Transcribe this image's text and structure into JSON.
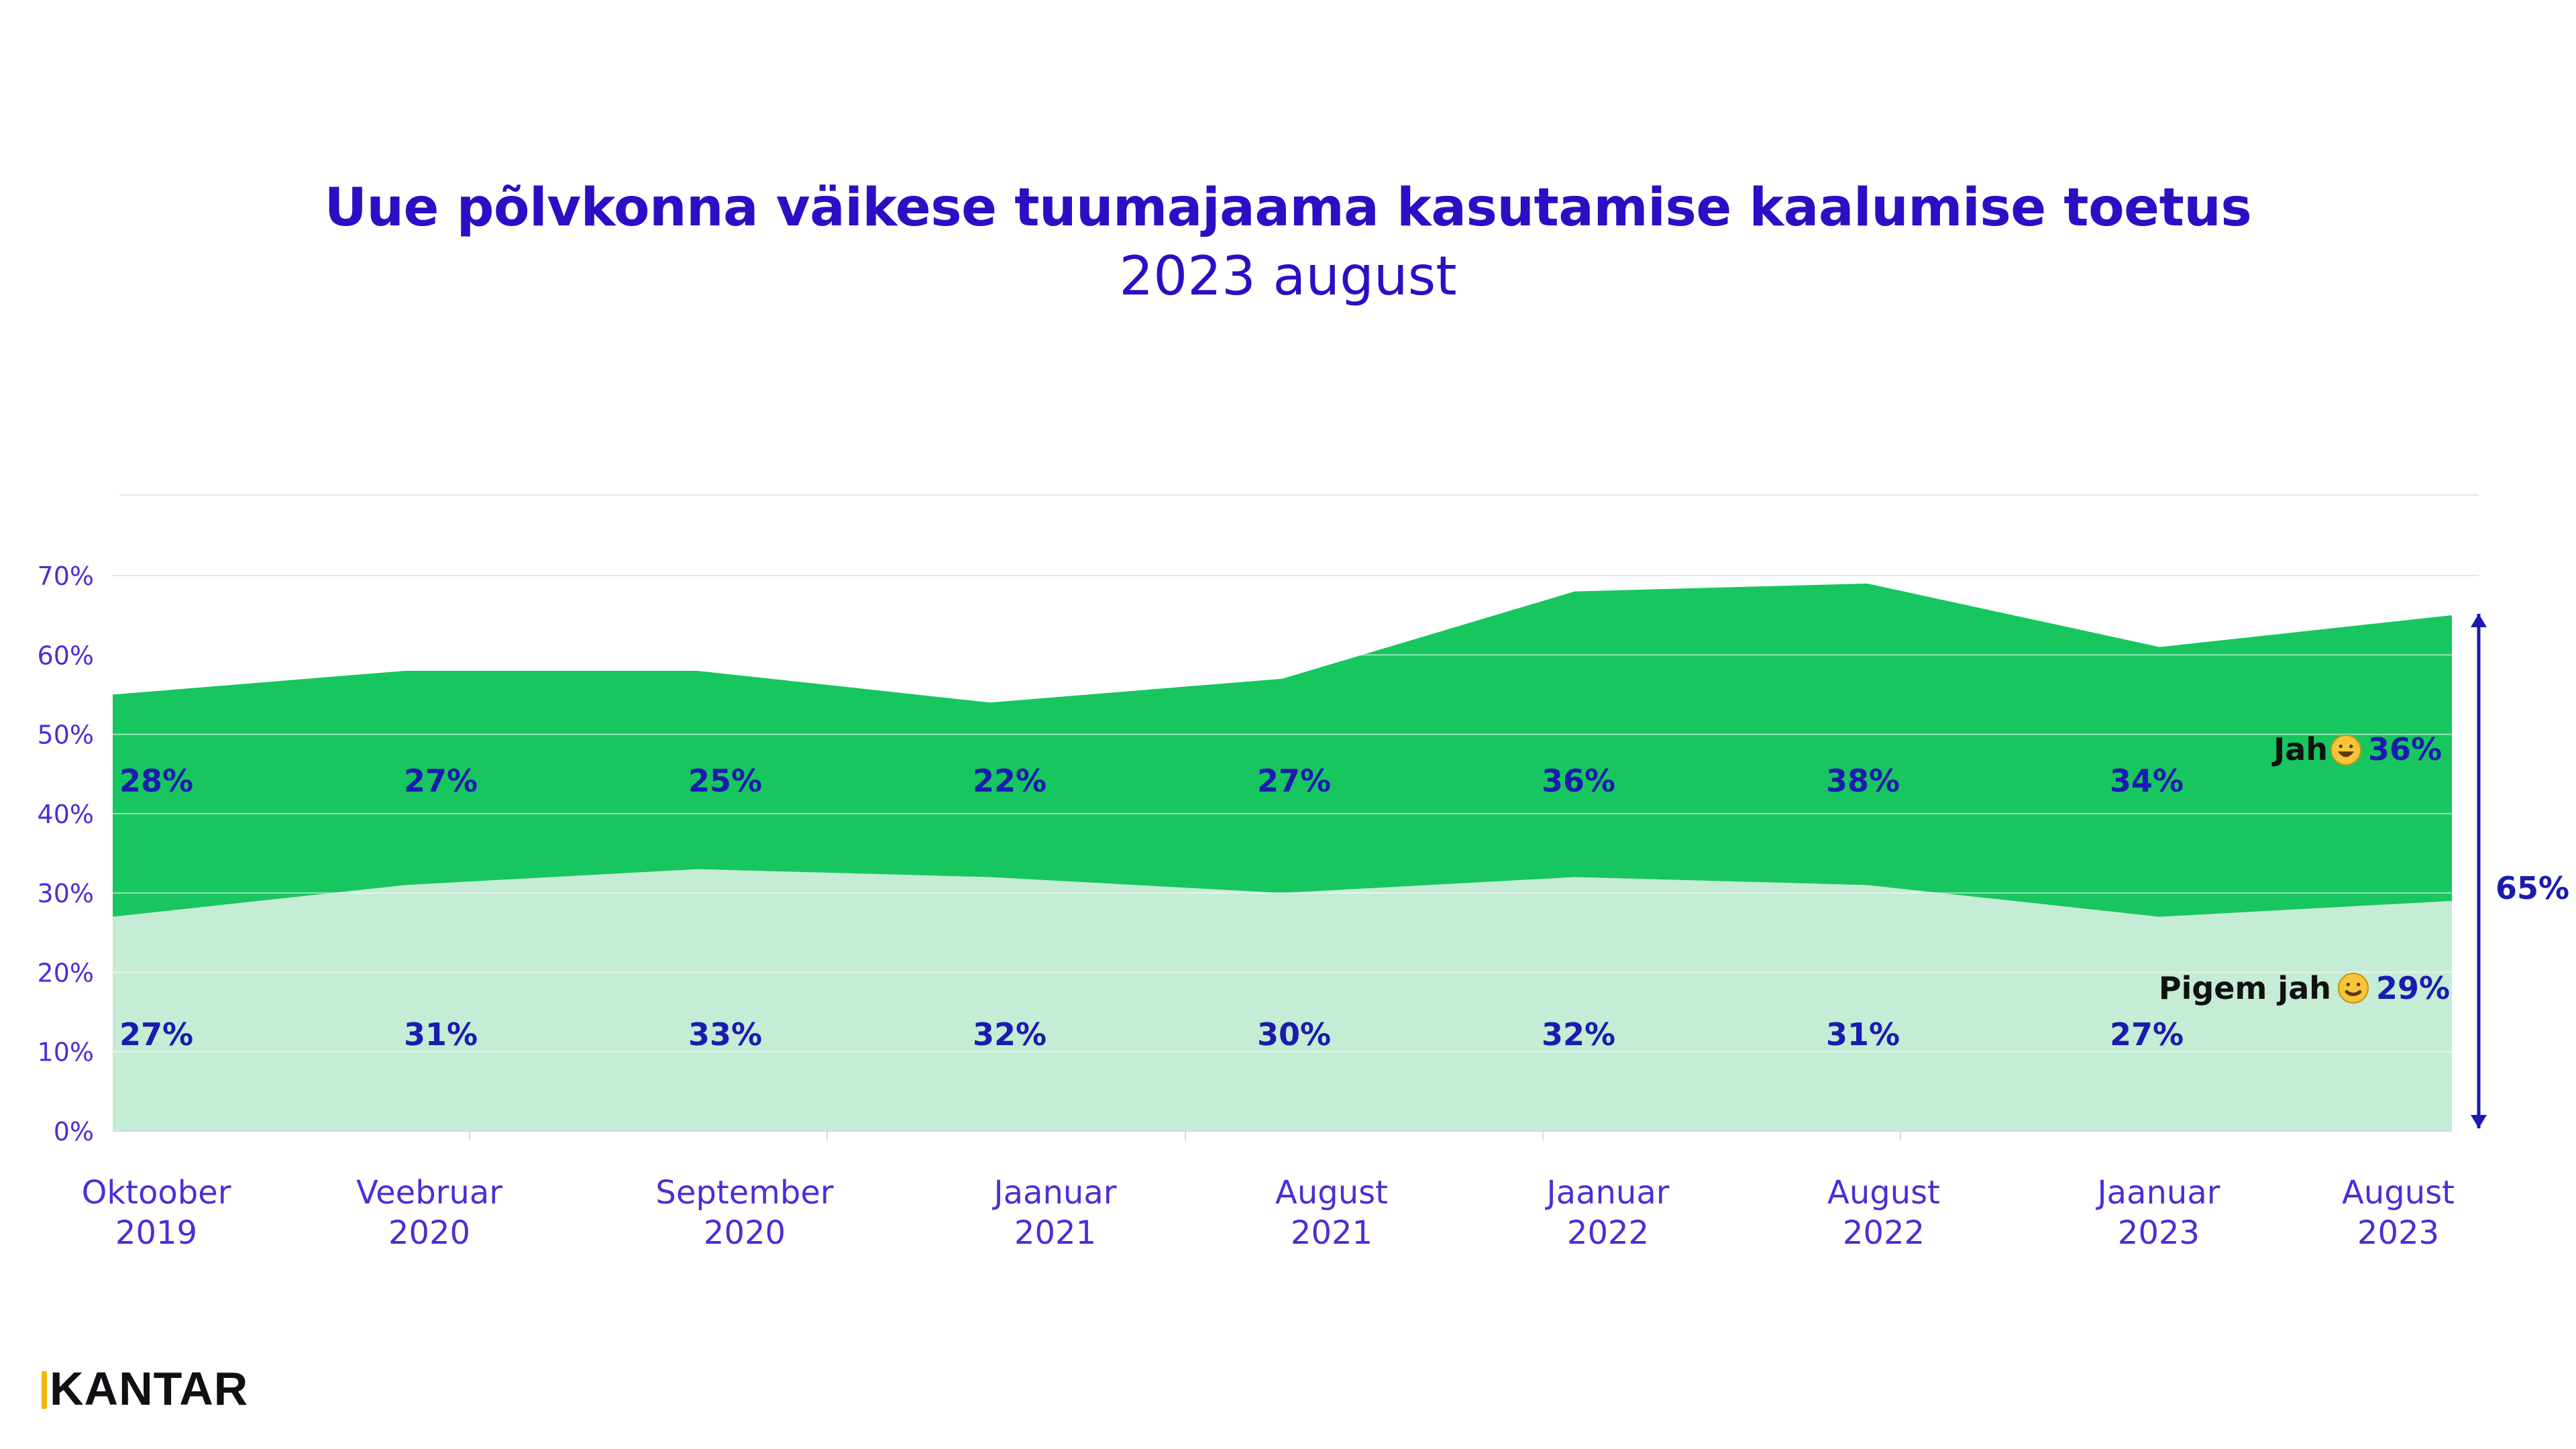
{
  "title": "Uue põlvkonna väikese tuumajaama kasutamise kaalumise toetus",
  "subtitle": "2023 august",
  "brand": "KANTAR",
  "colors": {
    "title": "#2b0fc4",
    "axis_text": "#4a2fd6",
    "jah": "#17c65f",
    "pigem_jah": "#c5ecd5",
    "value_label": "#1b1bb0",
    "bracket": "#1b1bb0"
  },
  "chart_data": {
    "type": "area",
    "stacked": true,
    "categories": [
      [
        "Oktoober",
        "2019"
      ],
      [
        "Veebruar",
        "2020"
      ],
      [
        "September",
        "2020"
      ],
      [
        "Jaanuar",
        "2021"
      ],
      [
        "August",
        "2021"
      ],
      [
        "Jaanuar",
        "2022"
      ],
      [
        "August",
        "2022"
      ],
      [
        "Jaanuar",
        "2023"
      ],
      [
        "August",
        "2023"
      ]
    ],
    "series": [
      {
        "name": "Pigem jah",
        "values": [
          27,
          31,
          33,
          32,
          30,
          32,
          31,
          27,
          29
        ],
        "labels": [
          "27%",
          "31%",
          "33%",
          "32%",
          "30%",
          "32%",
          "31%",
          "27%",
          "29%"
        ],
        "icon": "slight-smile-emoji-icon"
      },
      {
        "name": "Jah",
        "values": [
          28,
          27,
          25,
          22,
          27,
          36,
          38,
          34,
          36
        ],
        "labels": [
          "28%",
          "27%",
          "25%",
          "22%",
          "27%",
          "36%",
          "38%",
          "34%",
          "36%"
        ],
        "icon": "grinning-emoji-icon"
      }
    ],
    "yticks": [
      "0%",
      "10%",
      "20%",
      "30%",
      "40%",
      "50%",
      "60%",
      "70%"
    ],
    "ylim": [
      0,
      70
    ],
    "grid": true,
    "total_label": "65%"
  }
}
